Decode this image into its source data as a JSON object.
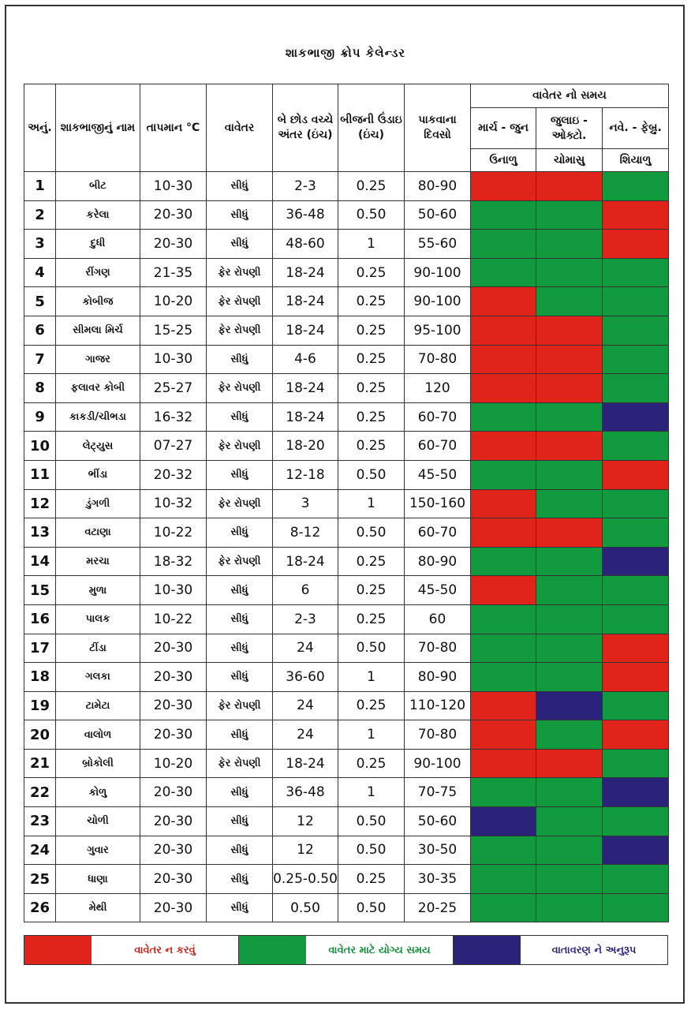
{
  "title": "શાકભાજી ક્રોપ કેલેન્ડર",
  "colors": {
    "red": "#e0241c",
    "green": "#119a3e",
    "blue": "#2a2379"
  },
  "headers": {
    "no": "અનું.",
    "name": "શાકભાજીનું નામ",
    "temp": "તાપમાન °C",
    "sowing": "વાવેતર",
    "spacing": "બે છોડ વચ્ચે અંતર (ઇંચ)",
    "depth": "બીજની ઉંડાઇ (ઇંચ)",
    "days": "પાકવાના દિવસો",
    "time": "વાવેતર નો સમય",
    "periods": [
      "માર્ચ - જુન",
      "જુલાઇ - ઓક્ટો.",
      "નવે. - ફેબ્રુ."
    ],
    "seasons": [
      "ઉનાળુ",
      "ચોમાસુ",
      "શિયાળુ"
    ]
  },
  "rows": [
    {
      "no": "1",
      "name": "બીટ",
      "temp": "10-30",
      "method": "સીધું",
      "spacing": "2-3",
      "depth": "0.25",
      "days": "80-90",
      "s": [
        "red",
        "red",
        "green"
      ]
    },
    {
      "no": "2",
      "name": "કરેલા",
      "temp": "20-30",
      "method": "સીધું",
      "spacing": "36-48",
      "depth": "0.50",
      "days": "50-60",
      "s": [
        "green",
        "green",
        "red"
      ]
    },
    {
      "no": "3",
      "name": "દુધી",
      "temp": "20-30",
      "method": "સીધું",
      "spacing": "48-60",
      "depth": "1",
      "days": "55-60",
      "s": [
        "green",
        "green",
        "red"
      ]
    },
    {
      "no": "4",
      "name": "રીંગણ",
      "temp": "21-35",
      "method": "ફેર રોપણી",
      "spacing": "18-24",
      "depth": "0.25",
      "days": "90-100",
      "s": [
        "green",
        "green",
        "green"
      ]
    },
    {
      "no": "5",
      "name": "કોબીજ",
      "temp": "10-20",
      "method": "ફેર રોપણી",
      "spacing": "18-24",
      "depth": "0.25",
      "days": "90-100",
      "s": [
        "red",
        "green",
        "green"
      ]
    },
    {
      "no": "6",
      "name": "સીમલા મિર્ચ",
      "temp": "15-25",
      "method": "ફેર રોપણી",
      "spacing": "18-24",
      "depth": "0.25",
      "days": "95-100",
      "s": [
        "red",
        "red",
        "green"
      ]
    },
    {
      "no": "7",
      "name": "ગાજર",
      "temp": "10-30",
      "method": "સીધું",
      "spacing": "4-6",
      "depth": "0.25",
      "days": "70-80",
      "s": [
        "red",
        "red",
        "green"
      ]
    },
    {
      "no": "8",
      "name": "ફલાવર કોબી",
      "temp": "25-27",
      "method": "ફેર રોપણી",
      "spacing": "18-24",
      "depth": "0.25",
      "days": "120",
      "s": [
        "red",
        "red",
        "green"
      ]
    },
    {
      "no": "9",
      "name": "કાકડી/ચીભડા",
      "temp": "16-32",
      "method": "સીધું",
      "spacing": "18-24",
      "depth": "0.25",
      "days": "60-70",
      "s": [
        "green",
        "green",
        "blue"
      ]
    },
    {
      "no": "10",
      "name": "લેટ્યુસ",
      "temp": "07-27",
      "method": "ફેર રોપણી",
      "spacing": "18-20",
      "depth": "0.25",
      "days": "60-70",
      "s": [
        "red",
        "red",
        "green"
      ]
    },
    {
      "no": "11",
      "name": "ભીંડા",
      "temp": "20-32",
      "method": "સીધું",
      "spacing": "12-18",
      "depth": "0.50",
      "days": "45-50",
      "s": [
        "green",
        "green",
        "red"
      ]
    },
    {
      "no": "12",
      "name": "ડુંગળી",
      "temp": "10-32",
      "method": "ફેર રોપણી",
      "spacing": "3",
      "depth": "1",
      "days": "150-160",
      "s": [
        "red",
        "green",
        "green"
      ]
    },
    {
      "no": "13",
      "name": "વટાણા",
      "temp": "10-22",
      "method": "સીધું",
      "spacing": "8-12",
      "depth": "0.50",
      "days": "60-70",
      "s": [
        "red",
        "red",
        "green"
      ]
    },
    {
      "no": "14",
      "name": "મરચા",
      "temp": "18-32",
      "method": "ફેર રોપણી",
      "spacing": "18-24",
      "depth": "0.25",
      "days": "80-90",
      "s": [
        "green",
        "green",
        "blue"
      ]
    },
    {
      "no": "15",
      "name": "મુળા",
      "temp": "10-30",
      "method": "સીધું",
      "spacing": "6",
      "depth": "0.25",
      "days": "45-50",
      "s": [
        "red",
        "green",
        "green"
      ]
    },
    {
      "no": "16",
      "name": "પાલક",
      "temp": "10-22",
      "method": "સીધું",
      "spacing": "2-3",
      "depth": "0.25",
      "days": "60",
      "s": [
        "green",
        "green",
        "green"
      ]
    },
    {
      "no": "17",
      "name": "ટીંડા",
      "temp": "20-30",
      "method": "સીધું",
      "spacing": "24",
      "depth": "0.50",
      "days": "70-80",
      "s": [
        "green",
        "green",
        "red"
      ]
    },
    {
      "no": "18",
      "name": "ગલકા",
      "temp": "20-30",
      "method": "સીધું",
      "spacing": "36-60",
      "depth": "1",
      "days": "80-90",
      "s": [
        "green",
        "green",
        "red"
      ]
    },
    {
      "no": "19",
      "name": "ટામેટા",
      "temp": "20-30",
      "method": "ફેર રોપણી",
      "spacing": "24",
      "depth": "0.25",
      "days": "110-120",
      "s": [
        "red",
        "blue",
        "green"
      ]
    },
    {
      "no": "20",
      "name": "વાલોળ",
      "temp": "20-30",
      "method": "સીધું",
      "spacing": "24",
      "depth": "1",
      "days": "70-80",
      "s": [
        "red",
        "green",
        "red"
      ]
    },
    {
      "no": "21",
      "name": "બ્રોકોલી",
      "temp": "10-20",
      "method": "ફેર રોપણી",
      "spacing": "18-24",
      "depth": "0.25",
      "days": "90-100",
      "s": [
        "red",
        "red",
        "green"
      ]
    },
    {
      "no": "22",
      "name": "કોળુ",
      "temp": "20-30",
      "method": "સીધું",
      "spacing": "36-48",
      "depth": "1",
      "days": "70-75",
      "s": [
        "green",
        "green",
        "blue"
      ]
    },
    {
      "no": "23",
      "name": "ચોળી",
      "temp": "20-30",
      "method": "સીધું",
      "spacing": "12",
      "depth": "0.50",
      "days": "50-60",
      "s": [
        "blue",
        "green",
        "green"
      ]
    },
    {
      "no": "24",
      "name": "ગુવાર",
      "temp": "20-30",
      "method": "સીધું",
      "spacing": "12",
      "depth": "0.50",
      "days": "30-50",
      "s": [
        "green",
        "green",
        "blue"
      ]
    },
    {
      "no": "25",
      "name": "ધાણા",
      "temp": "20-30",
      "method": "સીધું",
      "spacing": "0.25-0.50",
      "depth": "0.25",
      "days": "30-35",
      "s": [
        "green",
        "green",
        "green"
      ]
    },
    {
      "no": "26",
      "name": "મેથી",
      "temp": "20-30",
      "method": "સીધું",
      "spacing": "0.50",
      "depth": "0.50",
      "days": "20-25",
      "s": [
        "green",
        "green",
        "green"
      ]
    }
  ],
  "legend": [
    {
      "color": "red",
      "label": "વાવેતર ન કરવું",
      "text_color": "#c81f17"
    },
    {
      "color": "green",
      "label": "વાવેતર માટે યોગ્ય સમય",
      "text_color": "#0e8a37"
    },
    {
      "color": "blue",
      "label": "વાતાવરણ ને અનુરૂપ",
      "text_color": "#2a2379"
    }
  ]
}
